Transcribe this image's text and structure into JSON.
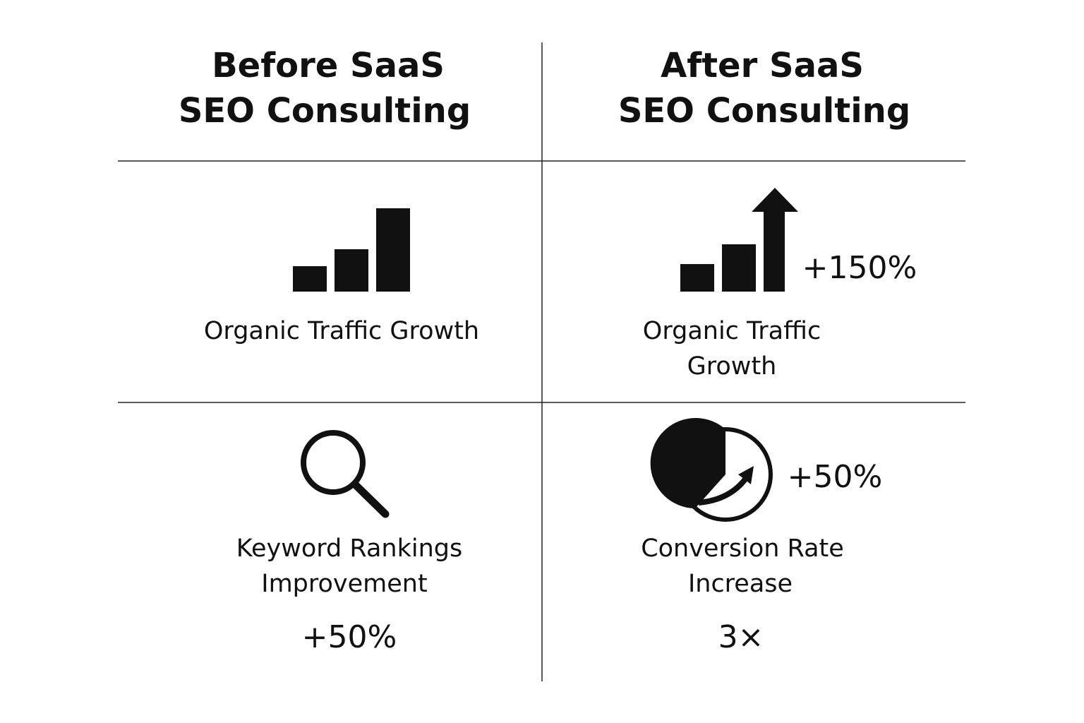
{
  "columns": [
    {
      "title": [
        "Before SaaS",
        "SEO Consulting"
      ],
      "cells": [
        {
          "label": [
            "Organic Traffic Growth"
          ]
        },
        {
          "label": [
            "Keyword Rankings",
            "Improvement"
          ],
          "stat": "+50%"
        }
      ]
    },
    {
      "title": [
        "After SaaS",
        "SEO Consulting"
      ],
      "cells": [
        {
          "label": [
            "Organic Traffic",
            "Growth"
          ],
          "stat": "+150%"
        },
        {
          "label": [
            "Conversion Rate",
            "Increase"
          ],
          "stat": "+50%",
          "stat2": "3×"
        }
      ]
    }
  ]
}
